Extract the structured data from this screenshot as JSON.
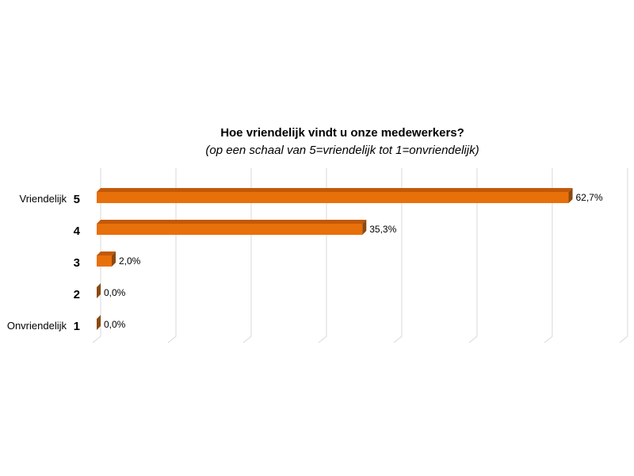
{
  "chart_data": {
    "type": "bar",
    "orientation": "horizontal",
    "title": "Hoe vriendelijk vindt u onze medewerkers?",
    "subtitle": "(op een schaal van 5=vriendelijk tot 1=onvriendelijk)",
    "categories": [
      {
        "label": "Vriendelijk",
        "num": "5"
      },
      {
        "label": "",
        "num": "4"
      },
      {
        "label": "",
        "num": "3"
      },
      {
        "label": "",
        "num": "2"
      },
      {
        "label": "Onvriendelijk",
        "num": "1"
      }
    ],
    "values": [
      62.7,
      35.3,
      2.0,
      0.0,
      0.0
    ],
    "value_labels": [
      "62,7%",
      "35,3%",
      "2,0%",
      "0,0%",
      "0,0%"
    ],
    "xlim": [
      0,
      70
    ],
    "grid": true,
    "legend": "none",
    "colors": {
      "bar_front": "#e8700a",
      "bar_top": "#c2590a",
      "bar_side": "#8b4a10",
      "gridline": "#d9d9d9"
    }
  }
}
